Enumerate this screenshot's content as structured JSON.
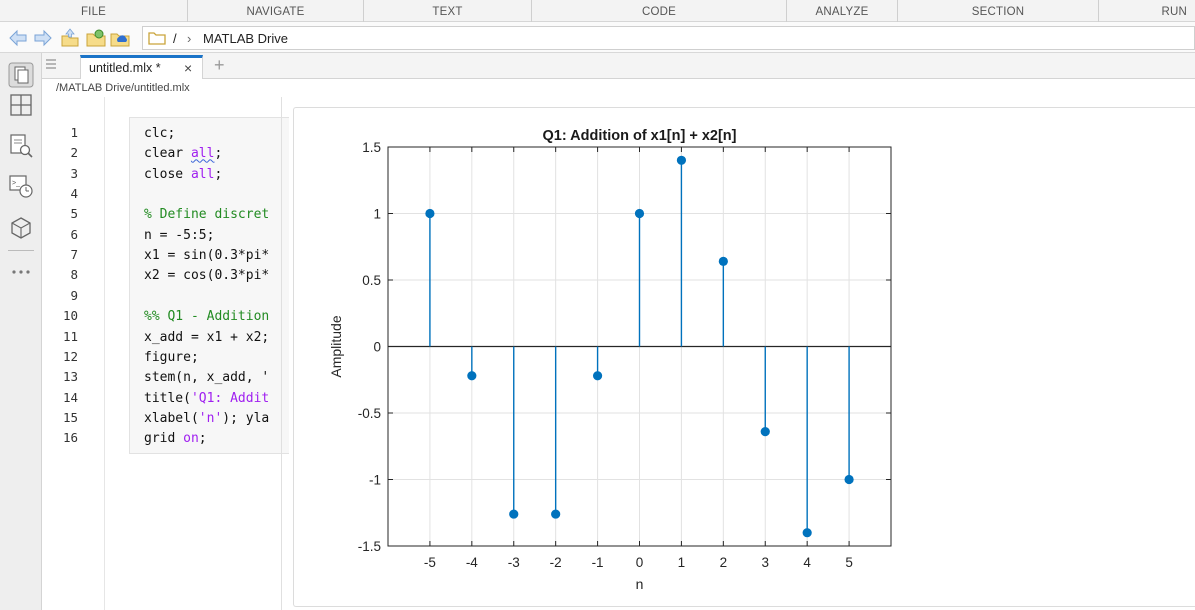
{
  "menubar": {
    "items": [
      "FILE",
      "NAVIGATE",
      "TEXT",
      "CODE",
      "ANALYZE",
      "SECTION",
      "RUN"
    ]
  },
  "nav": {
    "icons": [
      "back-arrow-icon",
      "forward-arrow-icon",
      "up-folder-icon",
      "browse-folder-icon",
      "matlab-drive-icon"
    ],
    "path_separator": "/",
    "path_chevron": "›",
    "path_label": "MATLAB Drive"
  },
  "rail": {
    "icons": [
      "files-icon",
      "workspace-icon",
      "search-files-icon",
      "command-history-icon",
      "addons-icon",
      "more-icon"
    ]
  },
  "tabs": {
    "active_label": "untitled.mlx *",
    "close_glyph": "×",
    "add_glyph": "+"
  },
  "breadcrumb": "/MATLAB Drive/untitled.mlx",
  "editor": {
    "line_numbers": [
      "1",
      "2",
      "3",
      "4",
      "5",
      "6",
      "7",
      "8",
      "9",
      "10",
      "11",
      "12",
      "13",
      "14",
      "15",
      "16"
    ],
    "lines": [
      [
        {
          "t": "clc;",
          "c": ""
        }
      ],
      [
        {
          "t": "clear ",
          "c": ""
        },
        {
          "t": "all",
          "c": "kw squig"
        },
        {
          "t": ";",
          "c": ""
        }
      ],
      [
        {
          "t": "close ",
          "c": ""
        },
        {
          "t": "all",
          "c": "kw"
        },
        {
          "t": ";",
          "c": ""
        }
      ],
      [],
      [
        {
          "t": "% Define discret",
          "c": "cm"
        }
      ],
      [
        {
          "t": "n = -5:5;",
          "c": ""
        }
      ],
      [
        {
          "t": "x1 = sin(0.3*pi*",
          "c": ""
        }
      ],
      [
        {
          "t": "x2 = cos(0.3*pi*",
          "c": ""
        }
      ],
      [],
      [
        {
          "t": "%% Q1 - Addition",
          "c": "cm"
        }
      ],
      [
        {
          "t": "x_add = x1 + x2;",
          "c": ""
        }
      ],
      [
        {
          "t": "figure;",
          "c": ""
        }
      ],
      [
        {
          "t": "stem(n, x_add, '",
          "c": ""
        }
      ],
      [
        {
          "t": "title(",
          "c": ""
        },
        {
          "t": "'Q1: Addit",
          "c": "str"
        }
      ],
      [
        {
          "t": "xlabel(",
          "c": ""
        },
        {
          "t": "'n'",
          "c": "str"
        },
        {
          "t": "); yla",
          "c": ""
        }
      ],
      [
        {
          "t": "grid ",
          "c": ""
        },
        {
          "t": "on",
          "c": "kw"
        },
        {
          "t": ";",
          "c": ""
        }
      ]
    ]
  },
  "chart_data": {
    "type": "stem",
    "title": "Q1: Addition of x1[n] + x2[n]",
    "xlabel": "n",
    "ylabel": "Amplitude",
    "x": [
      -5,
      -4,
      -3,
      -2,
      -1,
      0,
      1,
      2,
      3,
      4,
      5
    ],
    "values": [
      1.0,
      -0.22,
      -1.26,
      -1.26,
      -0.22,
      1.0,
      1.4,
      0.64,
      -0.64,
      -1.4,
      -1.0
    ],
    "xlim": [
      -6,
      6
    ],
    "ylim": [
      -1.5,
      1.5
    ],
    "xticks": [
      -5,
      -4,
      -3,
      -2,
      -1,
      0,
      1,
      2,
      3,
      4,
      5
    ],
    "yticks": [
      -1.5,
      -1,
      -0.5,
      0,
      0.5,
      1,
      1.5
    ],
    "ytick_labels": [
      "-1.5",
      "-1",
      "-0.5",
      "0",
      "0.5",
      "1",
      "1.5"
    ],
    "grid": true,
    "color": "#0072BD"
  }
}
